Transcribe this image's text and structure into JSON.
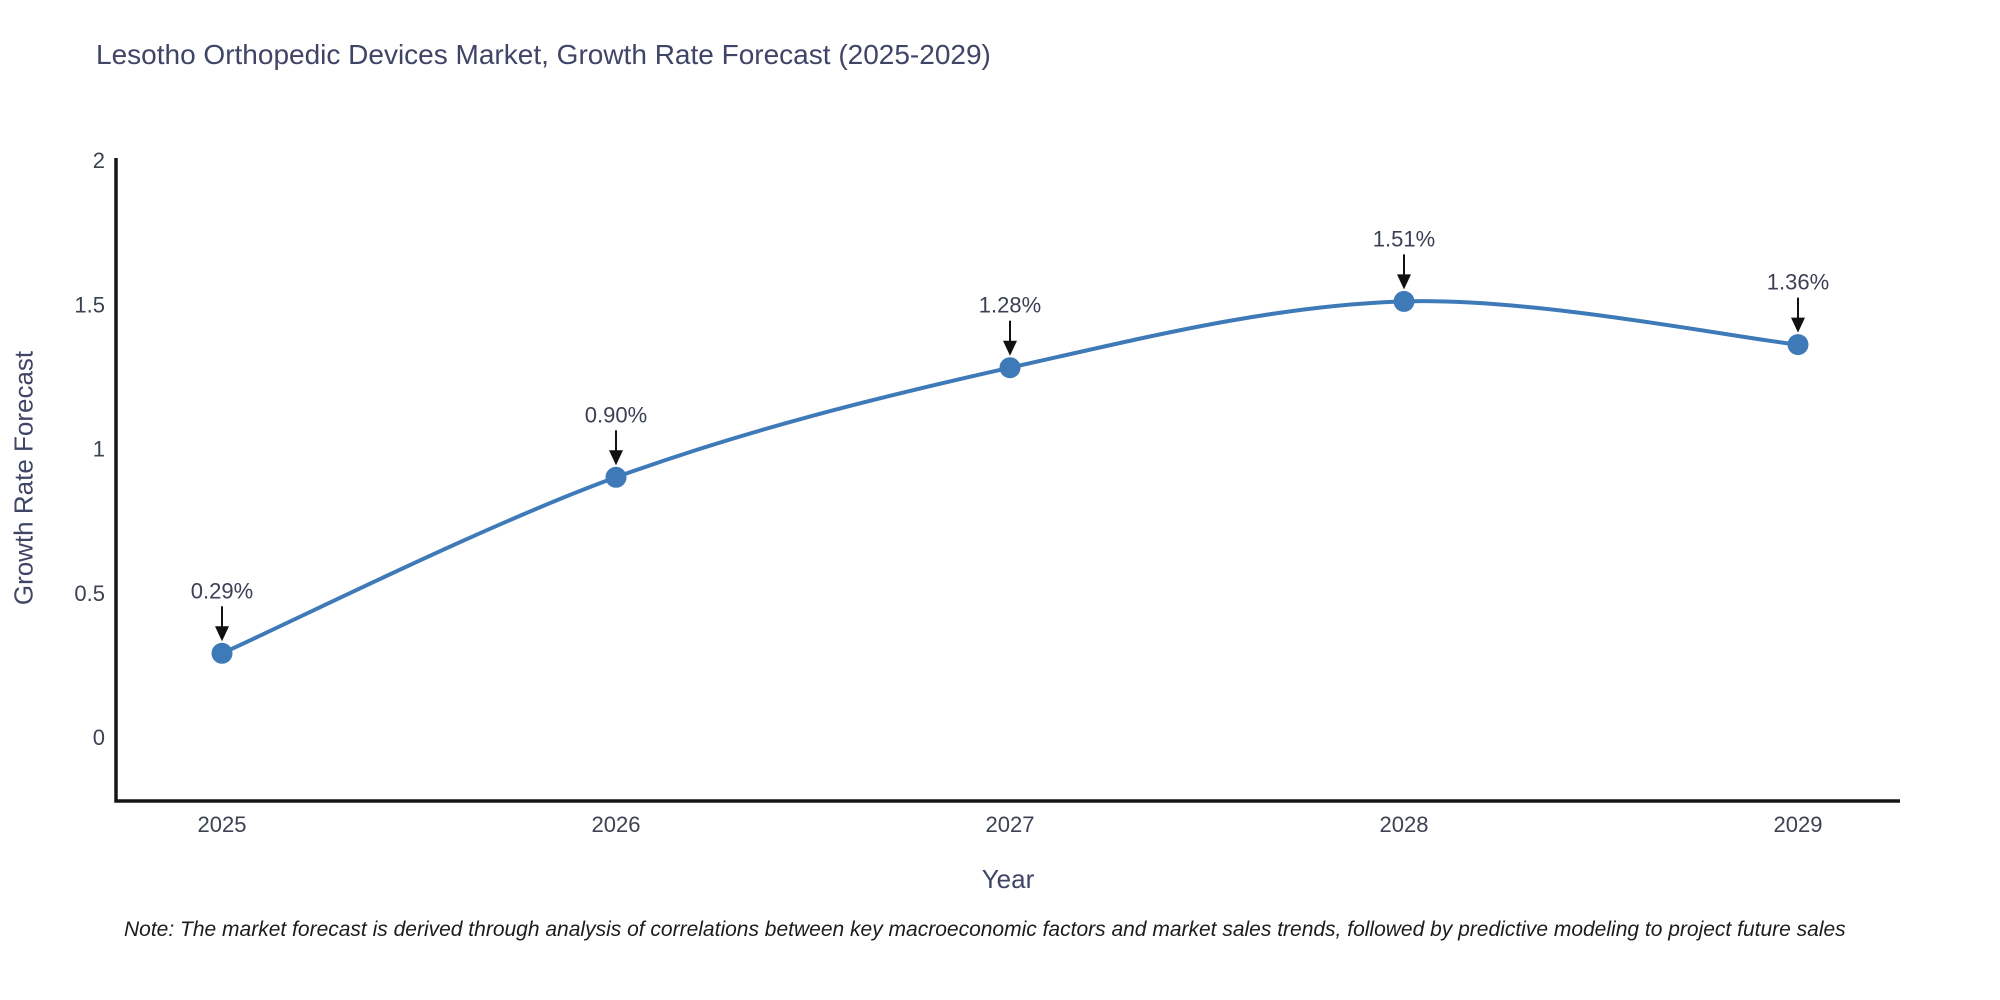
{
  "chart": {
    "title": "Lesotho Orthopedic Devices Market, Growth Rate Forecast (2025-2029)",
    "xlabel": "Year",
    "ylabel": "Growth Rate Forecast",
    "note": "Note: The market forecast is derived through analysis of correlations between key macroeconomic factors and market sales trends, followed by predictive modeling to project future sales"
  },
  "chart_data": {
    "type": "line",
    "title": "Lesotho Orthopedic Devices Market, Growth Rate Forecast (2025-2029)",
    "xlabel": "Year",
    "ylabel": "Growth Rate Forecast",
    "x": [
      "2025",
      "2026",
      "2027",
      "2028",
      "2029"
    ],
    "series": [
      {
        "name": "Growth Rate Forecast",
        "values": [
          0.29,
          0.9,
          1.28,
          1.51,
          1.36
        ]
      }
    ],
    "point_labels": [
      "0.29%",
      "0.90%",
      "1.28%",
      "1.51%",
      "1.36%"
    ],
    "yticks": [
      0,
      0.5,
      1,
      1.5,
      2
    ],
    "ytick_labels": [
      "0",
      "0.5",
      "1",
      "1.5",
      "2"
    ],
    "ylim": [
      -0.22,
      2.02
    ],
    "grid": false,
    "legend_position": "none",
    "line_shape": "spline",
    "colors": {
      "line": "#3e7ab8",
      "marker": "#3e7ab8",
      "annotation_arrow": "#111111",
      "axis_line": "#161616",
      "title_text": "#3f4566",
      "tick_text": "#3b4252",
      "note_text": "#1c1c1c"
    }
  }
}
